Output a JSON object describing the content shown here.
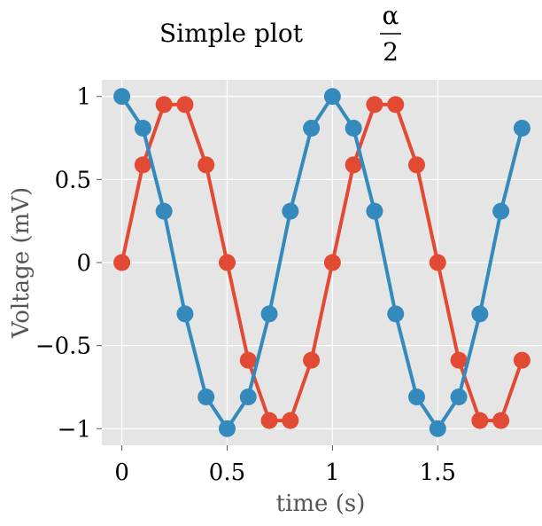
{
  "chart_data": {
    "type": "line",
    "title": "Simple plot",
    "title_math": {
      "numerator": "α",
      "denominator": "2"
    },
    "xlabel": "time (s)",
    "ylabel": "Voltage (mV)",
    "xlim": [
      -0.095,
      1.995
    ],
    "ylim": [
      -1.1,
      1.1
    ],
    "grid": true,
    "legend": "none",
    "x_ticks": [
      {
        "value": 0,
        "label": "0"
      },
      {
        "value": 0.5,
        "label": "0.5"
      },
      {
        "value": 1,
        "label": "1"
      },
      {
        "value": 1.5,
        "label": "1.5"
      }
    ],
    "y_ticks": [
      {
        "value": 1,
        "label": "1"
      },
      {
        "value": 0.5,
        "label": "0.5"
      },
      {
        "value": 0,
        "label": "0"
      },
      {
        "value": -0.5,
        "label": "−0.5"
      },
      {
        "value": -1,
        "label": "−1"
      }
    ],
    "x": [
      0,
      0.1,
      0.2,
      0.3,
      0.4,
      0.5,
      0.6,
      0.7,
      0.8,
      0.9,
      1.0,
      1.1,
      1.2,
      1.3,
      1.4,
      1.5,
      1.6,
      1.7,
      1.8,
      1.9
    ],
    "series": [
      {
        "color": "#e24a33",
        "values": [
          0,
          0.588,
          0.951,
          0.951,
          0.588,
          0,
          -0.588,
          -0.951,
          -0.951,
          -0.588,
          0,
          0.588,
          0.951,
          0.951,
          0.588,
          0,
          -0.588,
          -0.951,
          -0.951,
          -0.588
        ]
      },
      {
        "color": "#348abd",
        "values": [
          1,
          0.809,
          0.309,
          -0.309,
          -0.809,
          -1,
          -0.809,
          -0.309,
          0.309,
          0.809,
          1,
          0.809,
          0.309,
          -0.309,
          -0.809,
          -1,
          -0.809,
          -0.309,
          0.309,
          0.809
        ]
      }
    ],
    "colors": {
      "plot_background": "#e5e5e5",
      "grid": "#ffffff"
    }
  }
}
